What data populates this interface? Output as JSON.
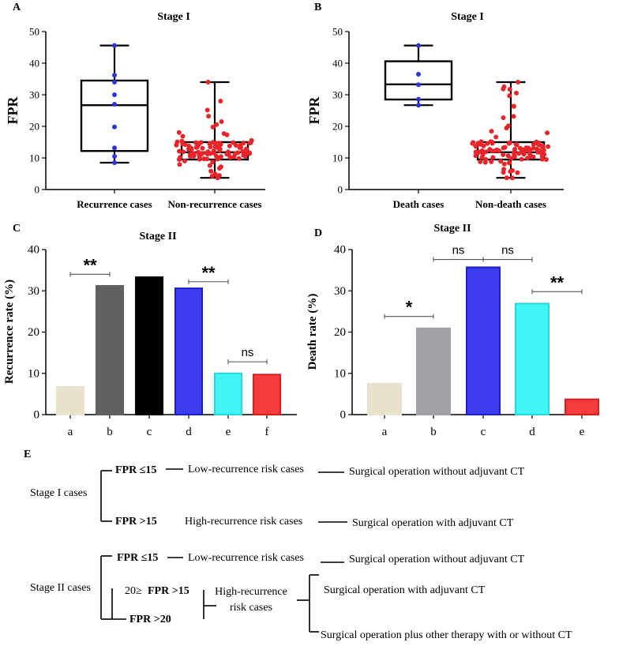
{
  "colors": {
    "blue_point": "#2a35e0",
    "red_point": "#e8252b",
    "box_stroke": "#000000"
  },
  "chart_data": [
    {
      "panel": "A",
      "type": "box",
      "title": "Stage I",
      "ylabel": "FPR",
      "ylim": [
        0,
        50
      ],
      "yticks": [
        0,
        10,
        20,
        30,
        40,
        50
      ],
      "categories": [
        "Recurrence cases",
        "Non-recurrence cases"
      ],
      "series": [
        {
          "name": "Recurrence cases",
          "color": "#2a35e0",
          "stats": {
            "min": 8.5,
            "q1": 12.2,
            "median": 26.7,
            "q3": 34.5,
            "max": 45.6
          },
          "points": [
            45.6,
            36.2,
            34.0,
            30.0,
            27.0,
            19.8,
            13.2,
            10.5,
            8.5
          ]
        },
        {
          "name": "Non-recurrence cases",
          "color": "#e8252b",
          "stats": {
            "min": 3.7,
            "q1": 9.5,
            "median": 11.8,
            "q3": 15.0,
            "max": 34.0
          },
          "n_points": 110,
          "points_range": [
            3.7,
            34.0
          ]
        }
      ]
    },
    {
      "panel": "B",
      "type": "box",
      "title": "Stage I",
      "ylabel": "FPR",
      "ylim": [
        0,
        50
      ],
      "yticks": [
        0,
        10,
        20,
        30,
        40,
        50
      ],
      "categories": [
        "Death cases",
        "Non-death cases"
      ],
      "series": [
        {
          "name": "Death cases",
          "color": "#2a35e0",
          "stats": {
            "min": 26.7,
            "q1": 28.5,
            "median": 33.3,
            "q3": 40.6,
            "max": 45.6
          },
          "points": [
            45.6,
            36.5,
            33.2,
            28.6,
            26.7
          ]
        },
        {
          "name": "Non-death cases",
          "color": "#e8252b",
          "stats": {
            "min": 3.7,
            "q1": 9.5,
            "median": 11.8,
            "q3": 15.0,
            "max": 34.0
          },
          "n_points": 110,
          "points_range": [
            3.7,
            34.0
          ]
        }
      ]
    },
    {
      "panel": "C",
      "type": "bar",
      "title": "Stage II",
      "ylabel": "Recurrence rate (%)",
      "ylim": [
        0,
        40
      ],
      "yticks": [
        0,
        10,
        20,
        30,
        40
      ],
      "categories": [
        "a",
        "b",
        "c",
        "d",
        "e",
        "f"
      ],
      "values": [
        6.7,
        31.2,
        33.3,
        30.6,
        10.0,
        9.7
      ],
      "bar_colors": [
        "#e8e1cc",
        "#606060",
        "#000000",
        "#3b3bf0",
        "#40f5f5",
        "#f53b3b"
      ],
      "bar_strokes": [
        "#e8e1cc",
        "#606060",
        "#000000",
        "#1e1ec8",
        "#2ad8d8",
        "#d81e1e"
      ],
      "annotations": [
        {
          "from": "a",
          "to": "b",
          "label": "**",
          "y": 34.0
        },
        {
          "from": "d",
          "to": "e",
          "label": "**",
          "y": 32.2
        },
        {
          "from": "e",
          "to": "f",
          "label": "ns",
          "y": 12.8
        }
      ]
    },
    {
      "panel": "D",
      "type": "bar",
      "title": "Stage II",
      "ylabel": "Death rate (%)",
      "ylim": [
        0,
        40
      ],
      "yticks": [
        0,
        10,
        20,
        30,
        40
      ],
      "categories": [
        "a",
        "b",
        "c",
        "d",
        "e"
      ],
      "values": [
        7.5,
        20.9,
        35.7,
        26.9,
        3.7
      ],
      "bar_colors": [
        "#e8e1cc",
        "#a1a1a6",
        "#3b3bf0",
        "#40f5f5",
        "#f53b3b"
      ],
      "bar_strokes": [
        "#e8e1cc",
        "#a1a1a6",
        "#1e1ec8",
        "#2ad8d8",
        "#d81e1e"
      ],
      "annotations": [
        {
          "from": "a",
          "to": "b",
          "label": "*",
          "y": 23.8
        },
        {
          "from": "b",
          "to": "c",
          "label": "ns",
          "y": 37.6
        },
        {
          "from": "c",
          "to": "d",
          "label": "ns",
          "y": 37.6
        },
        {
          "from": "d",
          "to": "e",
          "label": "**",
          "y": 29.8
        }
      ]
    }
  ],
  "panels": {
    "A": {
      "letter": "A"
    },
    "B": {
      "letter": "B"
    },
    "C": {
      "letter": "C"
    },
    "D": {
      "letter": "D"
    },
    "E": {
      "letter": "E"
    }
  },
  "diagram": {
    "stage1": {
      "root": "Stage I cases",
      "branch1": {
        "criterion": "FPR ≤15",
        "risk": "Low-recurrence risk cases",
        "action": "Surgical operation without adjuvant CT"
      },
      "branch2": {
        "criterion": "FPR >15",
        "risk": "High-recurrence risk cases",
        "action": "Surgical operation with adjuvant CT"
      }
    },
    "stage2": {
      "root": "Stage II cases",
      "branch1": {
        "criterion": "FPR ≤15",
        "risk": "Low-recurrence risk cases",
        "action": "Surgical operation without adjuvant CT"
      },
      "branch2": {
        "criterion_prefix": "20≥",
        "criterion": "FPR >15"
      },
      "branch3": {
        "criterion": "FPR >20"
      },
      "merged_risk_line1": "High-recurrence",
      "merged_risk_line2": "risk cases",
      "action1": "Surgical operation with adjuvant CT",
      "action2": "Surgical operation plus other therapy with or without CT"
    }
  }
}
